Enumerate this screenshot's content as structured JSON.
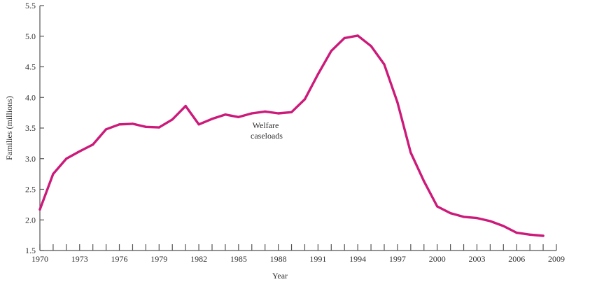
{
  "chart_data": {
    "type": "line",
    "title": "",
    "xlabel": "Year",
    "ylabel": "Families (millions)",
    "xlim": [
      1970,
      2009
    ],
    "ylim": [
      1.5,
      5.5
    ],
    "x_ticks": [
      "1970",
      "1973",
      "1976",
      "1979",
      "1982",
      "1985",
      "1988",
      "1991",
      "1994",
      "1997",
      "2000",
      "2003",
      "2006",
      "2009"
    ],
    "y_ticks": [
      "1.5",
      "2.0",
      "2.5",
      "3.0",
      "3.5",
      "4.0",
      "4.5",
      "5.0",
      "5.5"
    ],
    "grid": false,
    "series": [
      {
        "label_lines": [
          "Welfare",
          "caseloads"
        ],
        "color": "#cc1a7a",
        "x": [
          1970,
          1971,
          1972,
          1973,
          1974,
          1975,
          1976,
          1977,
          1978,
          1979,
          1980,
          1981,
          1982,
          1983,
          1984,
          1985,
          1986,
          1987,
          1988,
          1989,
          1990,
          1991,
          1992,
          1993,
          1994,
          1995,
          1996,
          1997,
          1998,
          1999,
          2000,
          2001,
          2002,
          2003,
          2004,
          2005,
          2006,
          2007,
          2008
        ],
        "y": [
          2.17,
          2.75,
          3.0,
          3.12,
          3.23,
          3.48,
          3.56,
          3.57,
          3.52,
          3.51,
          3.64,
          3.86,
          3.56,
          3.65,
          3.72,
          3.68,
          3.74,
          3.77,
          3.74,
          3.76,
          3.97,
          4.38,
          4.76,
          4.97,
          5.01,
          4.84,
          4.54,
          3.92,
          3.1,
          2.63,
          2.22,
          2.11,
          2.05,
          2.03,
          1.98,
          1.9,
          1.79,
          1.76,
          1.74
        ]
      }
    ]
  }
}
